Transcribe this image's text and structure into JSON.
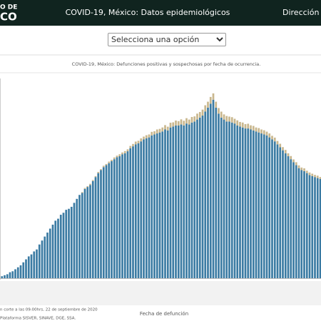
{
  "header": {
    "logo_line1": "O DE",
    "logo_line2": "CO",
    "title": "COVID-19, México: Datos epidemiológicos",
    "right": "Dirección G"
  },
  "select": {
    "placeholder": "Selecciona una opción"
  },
  "chart_data": {
    "type": "bar",
    "stacked": true,
    "title": "COVID-19, México: Defunciones positivas y sospechosas por fecha de ocurrencia.",
    "xlabel": "Fecha de defunción",
    "categories": [
      null,
      null,
      null,
      null,
      null,
      null,
      null,
      null,
      null,
      null,
      null,
      null,
      null,
      null,
      null,
      null,
      null,
      null,
      null,
      null,
      null,
      null,
      null,
      null,
      null,
      null,
      null,
      null,
      null,
      null,
      null,
      null,
      null,
      null,
      null,
      null,
      null,
      null,
      null,
      null,
      null,
      null,
      null,
      null,
      null,
      null,
      null,
      null,
      null,
      null,
      null,
      null,
      null,
      null,
      null,
      null,
      null,
      null,
      null,
      null,
      null,
      null,
      null,
      null,
      null,
      null,
      null,
      null,
      null,
      null,
      null,
      null,
      null,
      null,
      null,
      null,
      null,
      null,
      null,
      null,
      null,
      null,
      null,
      null,
      null,
      null,
      null,
      null,
      null,
      null,
      null,
      null,
      null,
      null,
      null,
      null,
      null,
      null,
      null,
      null,
      null,
      null,
      null,
      null,
      null,
      null,
      null,
      null,
      null,
      null,
      null,
      null,
      null,
      null,
      null,
      null,
      null,
      null,
      null,
      null
    ],
    "series": [
      {
        "color": "#3b7ba3",
        "values": [
          10,
          15,
          20,
          30,
          35,
          45,
          55,
          65,
          80,
          95,
          110,
          120,
          135,
          145,
          170,
          190,
          210,
          230,
          250,
          270,
          290,
          300,
          320,
          330,
          345,
          350,
          360,
          380,
          400,
          420,
          430,
          450,
          460,
          470,
          490,
          510,
          530,
          545,
          560,
          570,
          580,
          590,
          600,
          610,
          615,
          625,
          630,
          640,
          655,
          665,
          675,
          680,
          690,
          700,
          705,
          710,
          720,
          725,
          730,
          735,
          740,
          750,
          745,
          760,
          765,
          770,
          770,
          775,
          770,
          780,
          775,
          785,
          790,
          800,
          810,
          820,
          840,
          860,
          880,
          900,
          860,
          830,
          810,
          800,
          790,
          790,
          785,
          780,
          770,
          765,
          760,
          755,
          755,
          750,
          745,
          740,
          735,
          730,
          725,
          720,
          710,
          700,
          690,
          675,
          660,
          645,
          630,
          615,
          600,
          585,
          570,
          555,
          545,
          540,
          530,
          520,
          515,
          510,
          505,
          500
        ]
      },
      {
        "color": "#c9b78e",
        "values": [
          0,
          0,
          0,
          0,
          0,
          0,
          0,
          0,
          0,
          0,
          0,
          0,
          0,
          0,
          0,
          0,
          0,
          0,
          0,
          0,
          0,
          0,
          0,
          0,
          0,
          0,
          0,
          0,
          0,
          0,
          4,
          5,
          4,
          6,
          5,
          5,
          6,
          5,
          7,
          6,
          8,
          7,
          9,
          8,
          10,
          9,
          11,
          10,
          12,
          12,
          14,
          13,
          15,
          14,
          16,
          15,
          18,
          16,
          20,
          18,
          20,
          22,
          19,
          24,
          21,
          25,
          22,
          26,
          24,
          27,
          25,
          28,
          26,
          30,
          28,
          30,
          32,
          30,
          34,
          32,
          30,
          28,
          30,
          26,
          28,
          25,
          27,
          24,
          26,
          23,
          25,
          22,
          24,
          21,
          23,
          20,
          22,
          20,
          21,
          19,
          20,
          18,
          19,
          17,
          18,
          16,
          17,
          15,
          16,
          14,
          15,
          14,
          13,
          14,
          12,
          13,
          12,
          11,
          12,
          10
        ]
      }
    ],
    "ylim": [
      0,
      1000
    ]
  },
  "footer": {
    "note": "n corte a las 09:00hrs, 22 de septiembre de 2020",
    "source": "Plataforma SISVER, SINAVE, DGE, SSA."
  }
}
